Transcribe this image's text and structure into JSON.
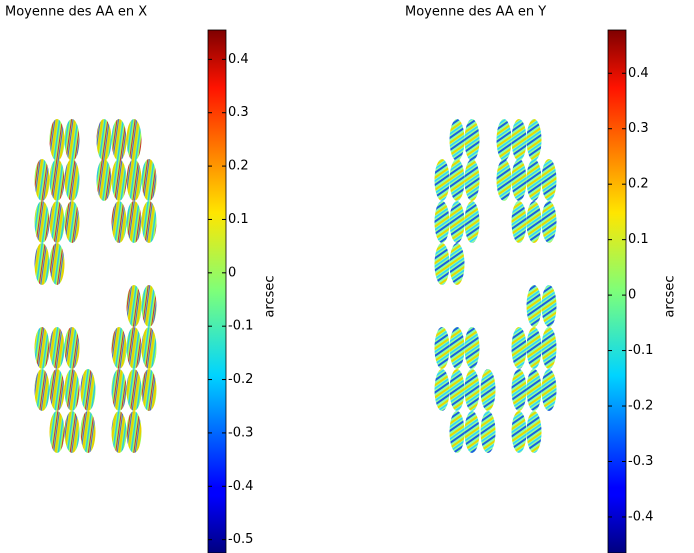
{
  "chart_data": [
    {
      "type": "image",
      "title": "Moyenne des AA en X",
      "colormap": "jet",
      "colorbar": {
        "label": "arcsec",
        "lim": [
          -0.525,
          0.455
        ],
        "ticks": [
          0.4,
          0.3,
          0.2,
          0.1,
          0,
          -0.1,
          -0.2,
          -0.3,
          -0.4,
          -0.5
        ]
      }
    },
    {
      "type": "image",
      "title": "Moyenne des AA en Y",
      "colormap": "jet",
      "colorbar": {
        "label": "arcsec",
        "lim": [
          -0.465,
          0.478
        ],
        "ticks": [
          0.4,
          0.3,
          0.2,
          0.1,
          0,
          -0.1,
          -0.2,
          -0.3,
          -0.4
        ]
      }
    }
  ]
}
